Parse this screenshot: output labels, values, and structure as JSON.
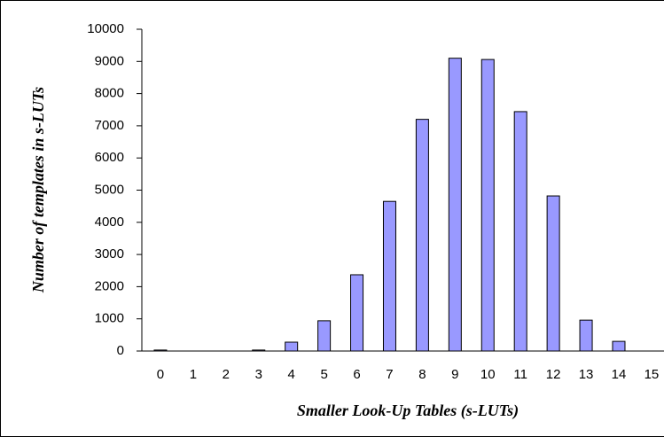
{
  "chart_data": {
    "type": "bar",
    "categories": [
      "0",
      "1",
      "2",
      "3",
      "4",
      "5",
      "6",
      "7",
      "8",
      "9",
      "10",
      "11",
      "12",
      "13",
      "14",
      "15"
    ],
    "values": [
      30,
      0,
      0,
      30,
      275,
      940,
      2370,
      4650,
      7200,
      9100,
      9060,
      7440,
      4820,
      960,
      300,
      0
    ],
    "color": "#9999ff",
    "x_label": "Smaller Look-Up Tables (s-LUTs)",
    "y_label": "Number of templates in s-LUTs",
    "ylim": [
      0,
      10000
    ],
    "yticks": [
      0,
      1000,
      2000,
      3000,
      4000,
      5000,
      6000,
      7000,
      8000,
      9000,
      10000
    ],
    "grid": false
  }
}
